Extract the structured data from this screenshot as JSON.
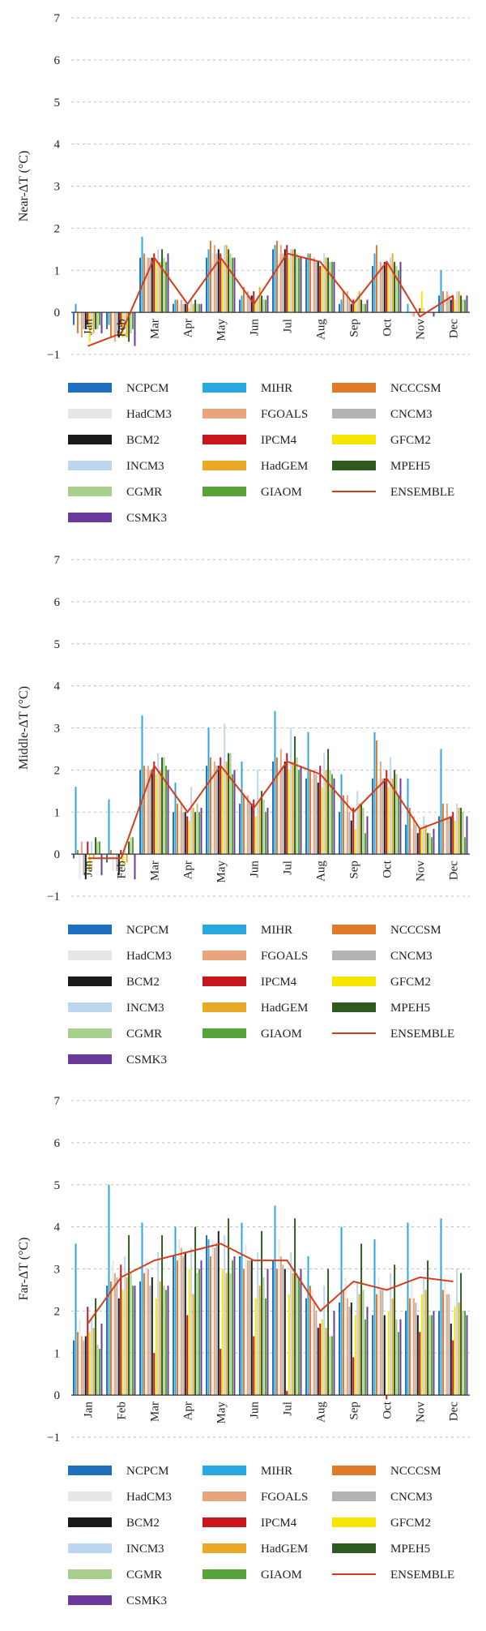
{
  "colors": {
    "NCPCM": "#1f6fbf",
    "MIHR": "#29a8e0",
    "NCCCSM": "#e07a2b",
    "HadCM3": "#e6e6e6",
    "FGOALS": "#e8a47c",
    "CNCM3": "#b3b3b3",
    "BCM2": "#1a1a1a",
    "IPCM4": "#c8161d",
    "GFCM2": "#f5e600",
    "INCM3": "#bcd6ee",
    "HadGEM": "#e9a825",
    "MPEH5": "#2d5a1f",
    "CGMR": "#a8cf8e",
    "GIAOM": "#58a33a",
    "CSMK3": "#6a3a9a",
    "ENSEMBLE": "#d43d1a"
  },
  "chart_data": [
    {
      "type": "bar",
      "ylabel": "Near-ΔT (°C)",
      "ylim": [
        -1,
        7
      ],
      "yticks": [
        "−1",
        "0",
        "1",
        "2",
        "3",
        "4",
        "5",
        "6",
        "7"
      ],
      "categories": [
        "Jan",
        "Feb",
        "Mar",
        "Apr",
        "May",
        "Jun",
        "Jul",
        "Aug",
        "Sep",
        "Oct",
        "Nov",
        "Dec"
      ],
      "legend": [
        "NCPCM",
        "MIHR",
        "NCCCSM",
        "HadCM3",
        "FGOALS",
        "CNCM3",
        "BCM2",
        "IPCM4",
        "GFCM2",
        "INCM3",
        "HadGEM",
        "MPEH5",
        "CGMR",
        "GIAOM",
        "ENSEMBLE",
        "CSMK3"
      ],
      "series": [
        {
          "name": "NCPCM",
          "values": [
            -0.3,
            -0.4,
            1.3,
            0.2,
            1.3,
            0.3,
            1.5,
            1.3,
            0.2,
            1.1,
            0.0,
            0.4
          ]
        },
        {
          "name": "MIHR",
          "values": [
            0.2,
            -0.3,
            1.8,
            0.3,
            1.5,
            0.4,
            1.6,
            1.4,
            0.3,
            1.4,
            0.2,
            1.0
          ]
        },
        {
          "name": "NCCCSM",
          "values": [
            -0.5,
            -0.6,
            1.4,
            0.3,
            1.7,
            0.6,
            1.7,
            1.4,
            0.5,
            1.6,
            0.0,
            0.5
          ]
        },
        {
          "name": "HadCM3",
          "values": [
            -0.3,
            -0.5,
            1.3,
            0.2,
            1.4,
            0.4,
            1.4,
            1.3,
            0.3,
            1.2,
            -0.1,
            0.4
          ]
        },
        {
          "name": "FGOALS",
          "values": [
            -0.6,
            -0.7,
            1.3,
            0.3,
            1.6,
            0.5,
            1.6,
            1.3,
            0.5,
            1.2,
            -0.1,
            0.5
          ]
        },
        {
          "name": "CNCM3",
          "values": [
            -0.4,
            -0.5,
            1.3,
            0.2,
            1.4,
            0.4,
            1.4,
            1.2,
            0.3,
            1.1,
            0.0,
            0.4
          ]
        },
        {
          "name": "BCM2",
          "values": [
            -0.4,
            -0.6,
            1.3,
            0.2,
            1.5,
            0.4,
            1.5,
            1.2,
            0.2,
            1.2,
            0.0,
            0.3
          ]
        },
        {
          "name": "IPCM4",
          "values": [
            -0.3,
            -0.3,
            1.4,
            0.2,
            1.4,
            0.5,
            1.6,
            1.1,
            0.3,
            1.2,
            0.1,
            0.4
          ]
        },
        {
          "name": "GFCM2",
          "values": [
            -0.7,
            -0.6,
            1.2,
            0.1,
            1.2,
            0.3,
            1.3,
            1.1,
            0.2,
            1.1,
            0.5,
            0.3
          ]
        },
        {
          "name": "INCM3",
          "values": [
            -0.2,
            -0.2,
            1.5,
            0.3,
            1.6,
            0.4,
            1.5,
            1.4,
            0.4,
            1.3,
            0.1,
            0.5
          ]
        },
        {
          "name": "HadGEM",
          "values": [
            -0.5,
            -0.6,
            1.2,
            0.2,
            1.6,
            0.6,
            1.5,
            1.3,
            0.5,
            1.4,
            0.0,
            0.5
          ]
        },
        {
          "name": "MPEH5",
          "values": [
            -0.4,
            -0.7,
            1.5,
            0.3,
            1.5,
            0.4,
            1.5,
            1.3,
            0.3,
            1.2,
            0.0,
            0.4
          ]
        },
        {
          "name": "CGMR",
          "values": [
            -0.4,
            -0.5,
            1.3,
            0.2,
            1.4,
            0.3,
            1.4,
            1.2,
            0.2,
            1.1,
            0.0,
            0.3
          ]
        },
        {
          "name": "GIAOM",
          "values": [
            -0.3,
            -0.4,
            1.2,
            0.2,
            1.3,
            0.3,
            1.3,
            1.2,
            0.2,
            1.0,
            0.0,
            0.3
          ]
        },
        {
          "name": "CSMK3",
          "values": [
            -0.5,
            -0.8,
            1.4,
            0.2,
            1.3,
            0.4,
            1.3,
            1.2,
            0.3,
            1.2,
            -0.1,
            0.4
          ]
        },
        {
          "name": "ENSEMBLE",
          "type": "line",
          "values": [
            -0.8,
            -0.5,
            1.3,
            0.2,
            1.3,
            0.2,
            1.4,
            1.2,
            0.2,
            1.2,
            -0.1,
            0.4
          ]
        }
      ]
    },
    {
      "type": "bar",
      "ylabel": "Middle-ΔT (°C)",
      "ylim": [
        -1,
        7
      ],
      "yticks": [
        "−1",
        "0",
        "1",
        "2",
        "3",
        "4",
        "5",
        "6",
        "7"
      ],
      "categories": [
        "Jan",
        "Feb",
        "Mar",
        "Apr",
        "May",
        "Jun",
        "Jul",
        "Aug",
        "Sep",
        "Oct",
        "Nov",
        "Dec"
      ],
      "legend": [
        "NCPCM",
        "MIHR",
        "NCCCSM",
        "HadCM3",
        "FGOALS",
        "CNCM3",
        "BCM2",
        "IPCM4",
        "GFCM2",
        "INCM3",
        "HadGEM",
        "MPEH5",
        "CGMR",
        "GIAOM",
        "ENSEMBLE",
        "CSMK3"
      ],
      "series": [
        {
          "name": "NCPCM",
          "values": [
            -0.1,
            -0.2,
            2.0,
            1.0,
            2.1,
            1.2,
            2.2,
            1.8,
            1.0,
            1.8,
            0.7,
            0.9
          ]
        },
        {
          "name": "MIHR",
          "values": [
            1.6,
            1.3,
            3.3,
            1.7,
            3.0,
            2.2,
            3.4,
            2.9,
            1.9,
            2.9,
            1.8,
            2.5
          ]
        },
        {
          "name": "NCCCSM",
          "values": [
            0.1,
            0.1,
            2.1,
            1.2,
            2.3,
            1.4,
            2.3,
            2.0,
            1.4,
            2.7,
            1.1,
            1.2
          ]
        },
        {
          "name": "HadCM3",
          "values": [
            -0.6,
            -0.4,
            2.0,
            1.0,
            2.0,
            1.2,
            2.0,
            1.8,
            1.0,
            1.8,
            0.6,
            0.9
          ]
        },
        {
          "name": "FGOALS",
          "values": [
            0.3,
            0.0,
            2.1,
            1.2,
            2.2,
            1.4,
            2.5,
            2.0,
            1.4,
            2.2,
            0.9,
            1.2
          ]
        },
        {
          "name": "CNCM3",
          "values": [
            -0.5,
            -0.4,
            2.0,
            1.0,
            2.1,
            1.2,
            2.1,
            1.9,
            1.0,
            1.8,
            0.7,
            0.9
          ]
        },
        {
          "name": "BCM2",
          "values": [
            -0.6,
            -0.5,
            2.0,
            1.0,
            2.1,
            1.2,
            2.2,
            1.7,
            0.8,
            1.8,
            0.5,
            0.9
          ]
        },
        {
          "name": "IPCM4",
          "values": [
            0.3,
            0.1,
            2.2,
            0.9,
            2.3,
            1.3,
            2.4,
            2.1,
            1.1,
            2.0,
            0.6,
            1.0
          ]
        },
        {
          "name": "GFCM2",
          "values": [
            -0.4,
            -0.3,
            1.9,
            0.8,
            2.0,
            0.9,
            2.0,
            1.6,
            0.6,
            1.6,
            0.6,
            0.8
          ]
        },
        {
          "name": "INCM3",
          "values": [
            0.3,
            0.2,
            2.4,
            1.6,
            3.1,
            2.0,
            3.0,
            2.4,
            1.5,
            2.3,
            0.9,
            1.2
          ]
        },
        {
          "name": "HadGEM",
          "values": [
            -0.1,
            -0.2,
            2.0,
            1.1,
            2.2,
            1.3,
            2.2,
            2.0,
            1.2,
            1.8,
            0.7,
            1.1
          ]
        },
        {
          "name": "MPEH5",
          "values": [
            0.4,
            0.3,
            2.3,
            1.0,
            2.4,
            1.5,
            2.8,
            2.5,
            1.2,
            2.0,
            0.5,
            1.1
          ]
        },
        {
          "name": "CGMR",
          "values": [
            0.3,
            0.4,
            2.3,
            1.2,
            2.4,
            1.3,
            2.3,
            2.0,
            1.1,
            1.9,
            0.5,
            1.0
          ]
        },
        {
          "name": "GIAOM",
          "values": [
            0.3,
            0.4,
            2.1,
            1.0,
            1.9,
            1.0,
            2.0,
            1.9,
            0.5,
            1.4,
            0.4,
            0.4
          ]
        },
        {
          "name": "CSMK3",
          "values": [
            -0.5,
            -0.6,
            2.0,
            1.1,
            2.0,
            1.1,
            2.1,
            1.8,
            0.9,
            1.8,
            0.6,
            0.9
          ]
        },
        {
          "name": "ENSEMBLE",
          "type": "line",
          "values": [
            -0.1,
            -0.1,
            2.1,
            1.0,
            2.1,
            1.1,
            2.2,
            1.9,
            1.0,
            1.8,
            0.6,
            0.9
          ]
        }
      ]
    },
    {
      "type": "bar",
      "ylabel": "Far-ΔT (°C)",
      "ylim": [
        -1,
        7
      ],
      "yticks": [
        "−1",
        "0",
        "1",
        "2",
        "3",
        "4",
        "5",
        "6",
        "7"
      ],
      "categories": [
        "Jan",
        "Feb",
        "Mar",
        "Apr",
        "May",
        "Jun",
        "Jul",
        "Aug",
        "Sep",
        "Oct",
        "Nov",
        "Dec"
      ],
      "legend": [
        "NCPCM",
        "MIHR",
        "NCCCSM",
        "HadCM3",
        "FGOALS",
        "CNCM3",
        "BCM2",
        "IPCM4",
        "GFCM2",
        "INCM3",
        "HadGEM",
        "MPEH5",
        "CGMR",
        "GIAOM",
        "ENSEMBLE",
        "CSMK3"
      ],
      "series": [
        {
          "name": "NCPCM",
          "values": [
            1.3,
            2.6,
            2.7,
            3.3,
            3.8,
            3.3,
            3.2,
            2.3,
            2.2,
            1.9,
            2.0,
            2.0
          ]
        },
        {
          "name": "MIHR",
          "values": [
            3.6,
            5.0,
            4.1,
            4.0,
            3.7,
            4.1,
            4.5,
            3.3,
            4.0,
            3.7,
            4.1,
            4.2
          ]
        },
        {
          "name": "NCCCSM",
          "values": [
            1.5,
            2.7,
            2.9,
            3.2,
            3.3,
            3.0,
            3.0,
            2.6,
            2.5,
            2.4,
            2.3,
            2.5
          ]
        },
        {
          "name": "HadCM3",
          "values": [
            1.8,
            3.2,
            3.2,
            3.7,
            3.7,
            3.6,
            3.7,
            2.5,
            2.8,
            2.8,
            2.7,
            2.8
          ]
        },
        {
          "name": "FGOALS",
          "values": [
            1.4,
            2.9,
            3.0,
            3.5,
            3.5,
            3.2,
            3.3,
            2.2,
            2.3,
            2.5,
            2.3,
            2.4
          ]
        },
        {
          "name": "CNCM3",
          "values": [
            1.3,
            2.8,
            2.6,
            3.3,
            3.6,
            3.2,
            3.1,
            2.0,
            2.1,
            2.5,
            2.2,
            2.4
          ]
        },
        {
          "name": "BCM2",
          "values": [
            1.4,
            2.3,
            2.8,
            3.4,
            3.9,
            3.2,
            3.0,
            1.6,
            2.2,
            1.9,
            1.9,
            1.7
          ]
        },
        {
          "name": "IPCM4",
          "values": [
            2.1,
            3.1,
            1.0,
            1.9,
            1.1,
            1.4,
            0.1,
            1.7,
            0.9,
            -0.1,
            1.5,
            1.3
          ]
        },
        {
          "name": "GFCM2",
          "values": [
            1.5,
            2.5,
            2.3,
            3.0,
            3.0,
            2.3,
            2.4,
            1.8,
            1.9,
            2.0,
            2.4,
            2.1
          ]
        },
        {
          "name": "INCM3",
          "values": [
            1.8,
            3.3,
            3.4,
            3.5,
            3.8,
            3.4,
            3.4,
            2.6,
            2.7,
            2.9,
            2.8,
            3.0
          ]
        },
        {
          "name": "HadGEM",
          "values": [
            1.6,
            2.8,
            2.7,
            2.4,
            2.9,
            2.6,
            2.9,
            1.6,
            2.4,
            2.3,
            2.5,
            2.2
          ]
        },
        {
          "name": "MPEH5",
          "values": [
            2.3,
            3.8,
            3.8,
            4.0,
            4.2,
            3.9,
            4.2,
            3.0,
            3.6,
            3.1,
            3.2,
            2.9
          ]
        },
        {
          "name": "CGMR",
          "values": [
            1.2,
            2.9,
            2.6,
            2.9,
            2.9,
            2.8,
            2.9,
            1.4,
            2.5,
            1.8,
            1.9,
            2.0
          ]
        },
        {
          "name": "GIAOM",
          "values": [
            1.1,
            2.6,
            2.5,
            3.0,
            3.2,
            2.3,
            2.8,
            1.4,
            1.8,
            1.5,
            1.9,
            2.0
          ]
        },
        {
          "name": "CSMK3",
          "values": [
            1.7,
            2.6,
            2.6,
            3.2,
            3.3,
            3.0,
            3.0,
            2.0,
            2.1,
            1.8,
            2.0,
            1.9
          ]
        },
        {
          "name": "ENSEMBLE",
          "type": "line",
          "values": [
            1.7,
            2.8,
            3.2,
            3.4,
            3.6,
            3.2,
            3.2,
            2.0,
            2.7,
            2.5,
            2.8,
            2.7
          ]
        }
      ]
    }
  ]
}
